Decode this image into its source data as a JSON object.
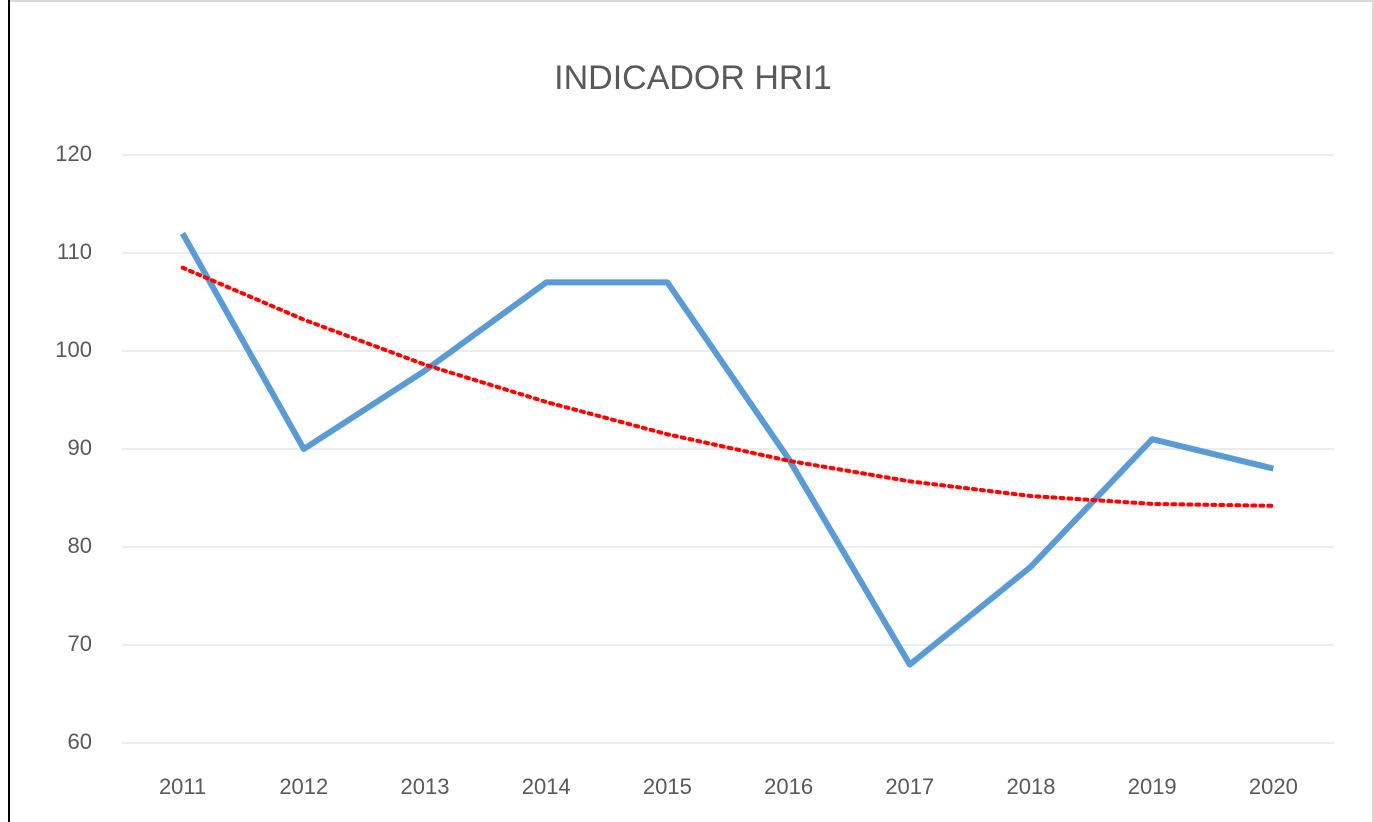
{
  "chart_data": {
    "type": "line",
    "title": "INDICADOR HRI1",
    "categories": [
      "2011",
      "2012",
      "2013",
      "2014",
      "2015",
      "2016",
      "2017",
      "2018",
      "2019",
      "2020"
    ],
    "series": [
      {
        "color": "#5b9bd5",
        "style": "solid",
        "values": [
          112,
          90,
          98,
          107,
          107,
          89,
          68,
          78,
          91,
          88
        ]
      },
      {
        "color": "#ff0000",
        "style": "dotted",
        "values": [
          108.5,
          103.2,
          98.6,
          94.8,
          91.5,
          88.8,
          86.7,
          85.2,
          84.4,
          84.2
        ]
      }
    ],
    "ylim": [
      60,
      120
    ],
    "yticks": [
      60,
      70,
      80,
      90,
      100,
      110,
      120
    ],
    "grid": true
  }
}
